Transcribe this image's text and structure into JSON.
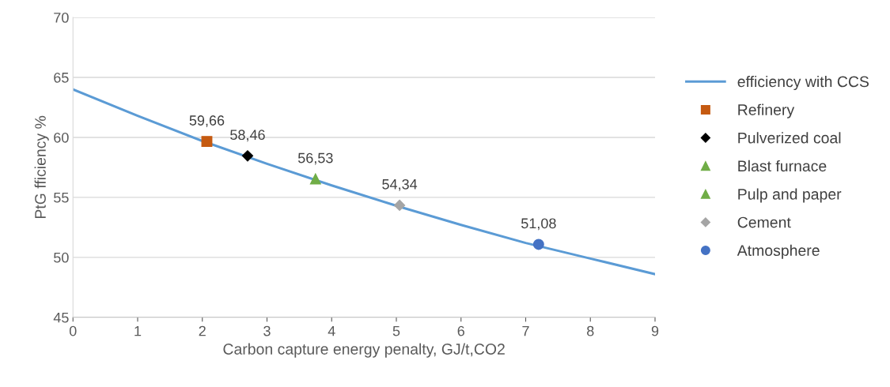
{
  "chart_data": {
    "type": "line",
    "xlabel": "Carbon capture energy penalty, GJ/t,CO2",
    "ylabel": "PtG fficiency %",
    "xlim": [
      0,
      9
    ],
    "xticks": [
      0,
      1,
      2,
      3,
      4,
      5,
      6,
      7,
      8,
      9
    ],
    "ylim": [
      45,
      70
    ],
    "yticks": [
      45,
      50,
      55,
      60,
      65,
      70
    ],
    "grid": "y",
    "legend": "right",
    "series": [
      {
        "name": "efficiency with CCS",
        "color": "#5b9bd5",
        "marker": "none",
        "x": [
          0,
          1,
          2,
          3,
          4,
          5,
          6,
          7,
          8,
          9
        ],
        "values": [
          64.0,
          61.8,
          59.7,
          57.8,
          56.0,
          54.3,
          52.7,
          51.2,
          49.9,
          48.6
        ]
      },
      {
        "name": "Refinery",
        "type": "scatter",
        "color": "#c55a11",
        "marker": "square",
        "x": [
          2.07
        ],
        "values": [
          59.66
        ],
        "value_labels": [
          "59,66"
        ]
      },
      {
        "name": "Pulverized coal",
        "type": "scatter",
        "color": "#000000",
        "marker": "diamond",
        "x": [
          2.7
        ],
        "values": [
          58.46
        ],
        "value_labels": [
          "58,46"
        ]
      },
      {
        "name": "Blast furnace",
        "type": "scatter",
        "color": "#70ad47",
        "marker": "triangle",
        "x": [
          3.75
        ],
        "values": [
          56.53
        ],
        "value_labels": [
          "56,53"
        ]
      },
      {
        "name": "Pulp and paper",
        "type": "scatter",
        "color": "#70ad47",
        "marker": "triangle"
      },
      {
        "name": "Cement",
        "type": "scatter",
        "color": "#a5a5a5",
        "marker": "diamond",
        "x": [
          5.05
        ],
        "values": [
          54.34
        ],
        "value_labels": [
          "54,34"
        ]
      },
      {
        "name": "Atmosphere",
        "type": "scatter",
        "color": "#4472c4",
        "marker": "circle",
        "x": [
          7.2
        ],
        "values": [
          51.08
        ],
        "value_labels": [
          "51,08"
        ]
      }
    ]
  }
}
